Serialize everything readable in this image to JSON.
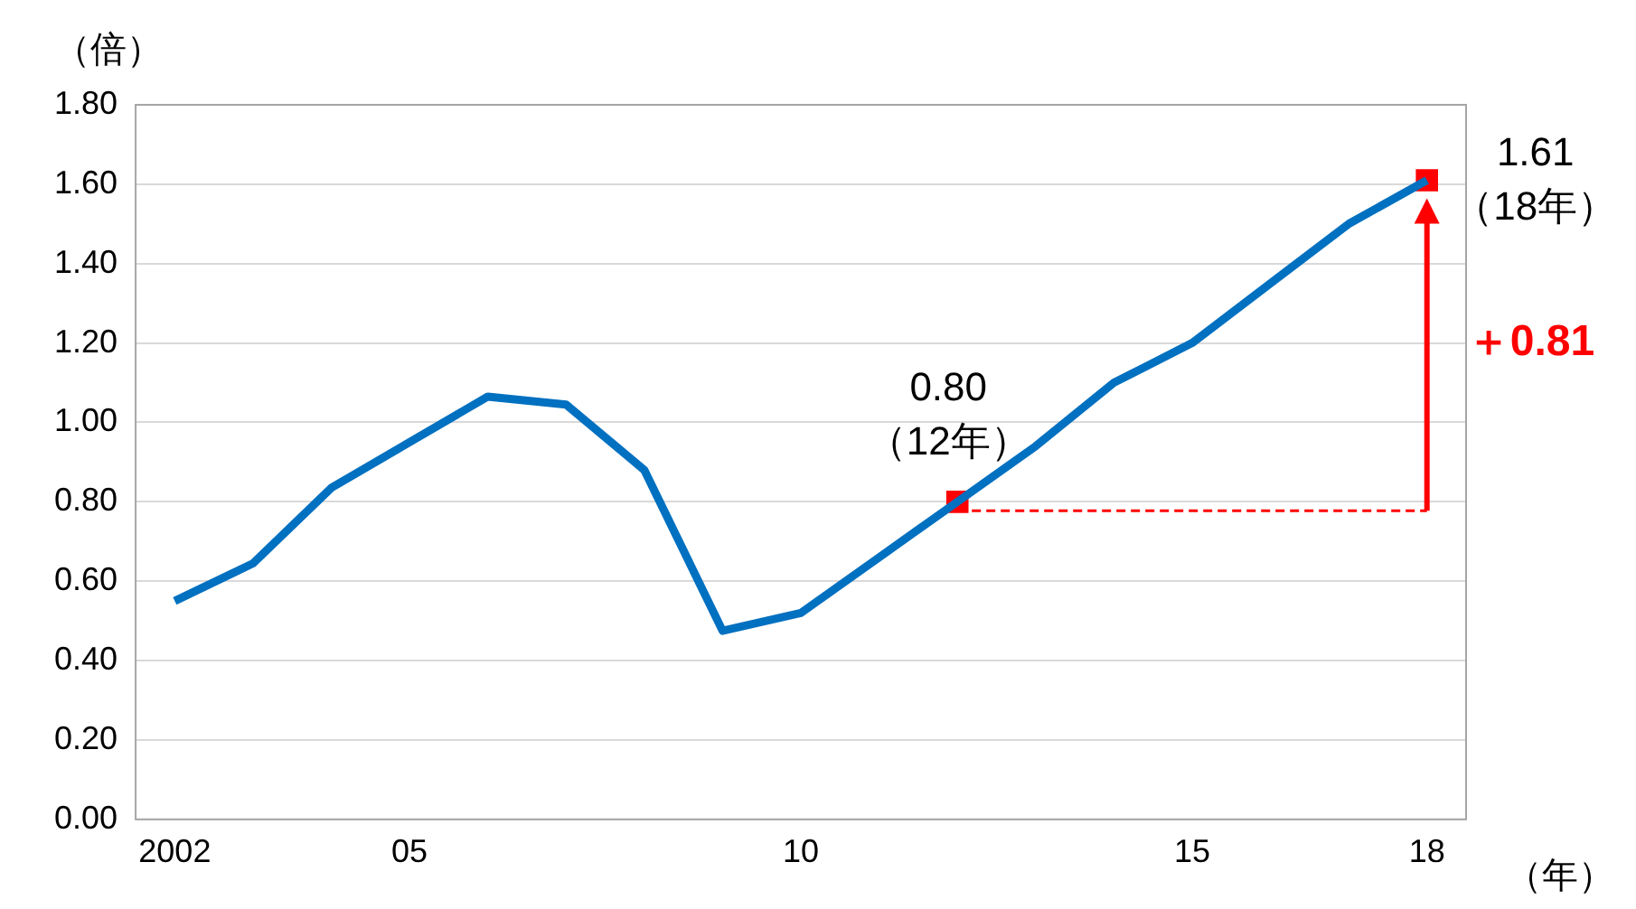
{
  "chart_data": {
    "type": "line",
    "ylabel": "（倍）",
    "xlabel": "（年）",
    "x": [
      2002,
      2003,
      2004,
      2005,
      2006,
      2007,
      2008,
      2009,
      2010,
      2011,
      2012,
      2013,
      2014,
      2015,
      2016,
      2017,
      2018
    ],
    "series": [
      {
        "type": "line",
        "color": "#0070c0",
        "values": [
          0.55,
          0.645,
          0.835,
          0.95,
          1.065,
          1.045,
          0.88,
          0.475,
          0.52,
          0.66,
          0.8,
          0.94,
          1.1,
          1.2,
          1.35,
          1.5,
          1.61
        ],
        "marker": "none"
      },
      {
        "type": "scatter",
        "color": "#ff0000",
        "x": [
          2012,
          2018
        ],
        "values": [
          0.8,
          1.61
        ],
        "marker": "square"
      }
    ],
    "xlim": [
      2001.5,
      2018.5
    ],
    "xticks": [
      2002,
      {
        "value": 2005,
        "label": "05"
      },
      {
        "value": 2010,
        "label": "10"
      },
      {
        "value": 2015,
        "label": "15"
      },
      {
        "value": 2018,
        "label": "18"
      }
    ],
    "ylim": [
      0,
      1.8
    ],
    "yticks": [
      {
        "value": 0,
        "label": "0.00"
      },
      {
        "value": 0.2,
        "label": "0.20"
      },
      {
        "value": 0.4,
        "label": "0.40"
      },
      {
        "value": 0.6,
        "label": "0.60"
      },
      {
        "value": 0.8,
        "label": "0.80"
      },
      {
        "value": 1,
        "label": "1.00"
      },
      {
        "value": 1.2,
        "label": "1.20"
      },
      {
        "value": 1.4,
        "label": "1.40"
      },
      {
        "value": 1.6,
        "label": "1.60"
      },
      {
        "value": 1.8,
        "label": "1.80"
      }
    ],
    "grid": "y",
    "legend": false,
    "annotations": [
      {
        "text": "0.80\n（12年）",
        "x": 2012,
        "y": 0.8
      },
      {
        "text": "1.61\n（18年）",
        "x": 2018,
        "y": 1.61
      },
      "＋0.81"
    ]
  }
}
